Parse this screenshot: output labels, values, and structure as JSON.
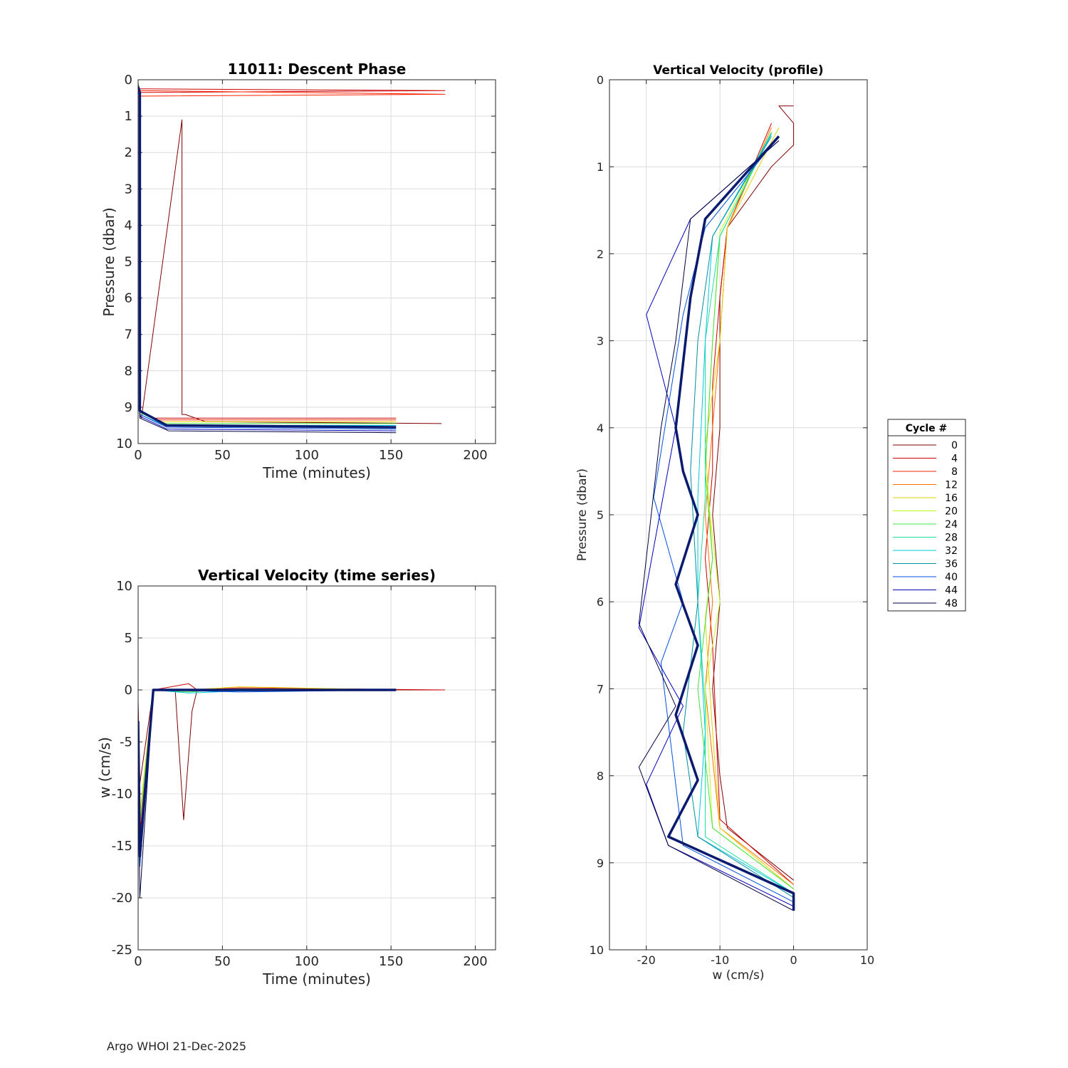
{
  "footer": "Argo WHOI 21-Dec-2025",
  "colors": {
    "cycle_ramp": [
      "#800000",
      "#cc0000",
      "#ff2000",
      "#ff7000",
      "#e6d000",
      "#c0ff20",
      "#40e040",
      "#20e0a0",
      "#00c8e0",
      "#0090a0",
      "#0050e0",
      "#0000c0",
      "#000040"
    ],
    "mean_line": "#0a1a6e"
  },
  "chart_data": [
    {
      "type": "line",
      "title": "11011: Descent Phase",
      "xlabel": "Time (minutes)",
      "ylabel": "Pressure (dbar)",
      "xlim": [
        0,
        212
      ],
      "ylim": [
        10,
        0
      ],
      "y_reversed": true,
      "xticks": [
        "0",
        "50",
        "100",
        "150",
        "200"
      ],
      "yticks": [
        "0",
        "1",
        "2",
        "3",
        "4",
        "5",
        "6",
        "7",
        "8",
        "9",
        "10"
      ],
      "grid": true,
      "series": [
        {
          "cycle": 0,
          "x": [
            0,
            1,
            1,
            2,
            26,
            26,
            26,
            28,
            40,
            180
          ],
          "y": [
            0.1,
            0.3,
            9.2,
            9.3,
            1.1,
            6.0,
            9.2,
            9.2,
            9.4,
            9.45
          ]
        },
        {
          "cycle": 4,
          "x": [
            0,
            182,
            0,
            1,
            1,
            10,
            153
          ],
          "y": [
            0.25,
            0.3,
            0.35,
            0.4,
            9.1,
            9.3,
            9.3
          ]
        },
        {
          "cycle": 8,
          "x": [
            0,
            182,
            0,
            1,
            1,
            12,
            153
          ],
          "y": [
            0.3,
            0.4,
            0.45,
            0.45,
            9.1,
            9.35,
            9.35
          ]
        },
        {
          "cycle": 16,
          "x": [
            0,
            1,
            1,
            14,
            153
          ],
          "y": [
            0.1,
            0.3,
            9.1,
            9.4,
            9.4
          ]
        },
        {
          "cycle": 24,
          "x": [
            0,
            1,
            1,
            15,
            153
          ],
          "y": [
            0.1,
            0.3,
            9.15,
            9.45,
            9.45
          ]
        },
        {
          "cycle": 32,
          "x": [
            0,
            1,
            1,
            16,
            153
          ],
          "y": [
            0.15,
            0.3,
            9.2,
            9.5,
            9.5
          ]
        },
        {
          "cycle": 40,
          "x": [
            0,
            1,
            1,
            17,
            153
          ],
          "y": [
            0.15,
            0.3,
            9.2,
            9.55,
            9.6
          ]
        },
        {
          "cycle": 44,
          "x": [
            0,
            1,
            1,
            17,
            153
          ],
          "y": [
            0.15,
            0.3,
            9.25,
            9.6,
            9.65
          ]
        },
        {
          "cycle": 48,
          "x": [
            0,
            1,
            1,
            18,
            153
          ],
          "y": [
            0.2,
            0.3,
            9.3,
            9.65,
            9.7
          ]
        },
        {
          "name": "mean",
          "x": [
            0,
            1,
            1,
            17,
            153
          ],
          "y": [
            0.2,
            0.35,
            9.1,
            9.5,
            9.55
          ]
        }
      ]
    },
    {
      "type": "line",
      "title": "Vertical Velocity (time series)",
      "xlabel": "Time (minutes)",
      "ylabel": "w (cm/s)",
      "xlim": [
        0,
        212
      ],
      "ylim": [
        -25,
        10
      ],
      "xticks": [
        "0",
        "50",
        "100",
        "150",
        "200"
      ],
      "yticks": [
        "10",
        "5",
        "0",
        "-5",
        "-10",
        "-15",
        "-20",
        "-25"
      ],
      "grid": true,
      "series": [
        {
          "cycle": 0,
          "x": [
            0,
            1,
            9,
            22,
            27,
            32,
            35,
            60,
            180
          ],
          "y": [
            -1,
            -9,
            0,
            0,
            -12.5,
            -2,
            0,
            0,
            0
          ]
        },
        {
          "cycle": 4,
          "x": [
            0,
            1,
            9,
            30,
            35,
            60,
            182
          ],
          "y": [
            -2,
            -14,
            0,
            0.6,
            0,
            0.2,
            0
          ]
        },
        {
          "cycle": 16,
          "x": [
            0,
            1,
            9,
            30,
            60,
            153
          ],
          "y": [
            -3,
            -12,
            0,
            0,
            0.3,
            0
          ]
        },
        {
          "cycle": 24,
          "x": [
            0,
            1,
            9,
            30,
            60,
            153
          ],
          "y": [
            -4,
            -13,
            0,
            -0.2,
            0.1,
            0
          ]
        },
        {
          "cycle": 32,
          "x": [
            0,
            1,
            9,
            30,
            60,
            153
          ],
          "y": [
            -5,
            -15,
            0,
            -0.3,
            -0.1,
            0
          ]
        },
        {
          "cycle": 40,
          "x": [
            0,
            1,
            9,
            60,
            153
          ],
          "y": [
            -6,
            -17,
            0,
            -0.2,
            0
          ]
        },
        {
          "cycle": 48,
          "x": [
            0,
            1,
            9,
            153
          ],
          "y": [
            -8,
            -20,
            0,
            0
          ]
        },
        {
          "name": "mean",
          "x": [
            0,
            1,
            9,
            153
          ],
          "y": [
            -3,
            -16,
            0,
            0
          ]
        }
      ]
    },
    {
      "type": "line",
      "title": "Vertical Velocity (profile)",
      "xlabel": "w (cm/s)",
      "ylabel": "Pressure (dbar)",
      "xlim": [
        -25,
        10
      ],
      "ylim": [
        10,
        0
      ],
      "y_reversed": true,
      "xticks": [
        "-20",
        "-10",
        "0",
        "10"
      ],
      "yticks": [
        "0",
        "1",
        "2",
        "3",
        "4",
        "5",
        "6",
        "7",
        "8",
        "9",
        "10"
      ],
      "grid": true,
      "series": [
        {
          "cycle": 0,
          "x": [
            0,
            -2,
            0,
            0,
            -3,
            -9,
            -10,
            -10,
            -11,
            -10,
            -11,
            -10,
            -9,
            0
          ],
          "y": [
            0.3,
            0.3,
            0.5,
            0.75,
            1.0,
            1.7,
            2.5,
            4.0,
            5.0,
            6.0,
            7.0,
            8.0,
            8.6,
            9.2
          ]
        },
        {
          "cycle": 4,
          "x": [
            -3,
            -9,
            -10,
            -11,
            -11,
            -12,
            -11,
            -10,
            0
          ],
          "y": [
            0.5,
            1.7,
            2.5,
            3.5,
            4.5,
            5.5,
            6.5,
            8.5,
            9.25
          ]
        },
        {
          "cycle": 12,
          "x": [
            -3,
            -9,
            -10,
            -11,
            -12,
            -11,
            -12,
            -10,
            0
          ],
          "y": [
            0.55,
            1.7,
            3.0,
            4.0,
            5.0,
            6.0,
            7.0,
            8.6,
            9.25
          ]
        },
        {
          "cycle": 16,
          "x": [
            -2,
            -9,
            -10,
            -12,
            -11,
            -12,
            -11,
            -10,
            0
          ],
          "y": [
            0.55,
            1.7,
            3.0,
            4.2,
            5.5,
            6.2,
            7.5,
            8.6,
            9.3
          ]
        },
        {
          "cycle": 20,
          "x": [
            -3,
            -10,
            -11,
            -12,
            -10,
            -12,
            -11,
            0
          ],
          "y": [
            0.6,
            1.75,
            3.0,
            4.5,
            6.0,
            7.0,
            8.6,
            9.3
          ]
        },
        {
          "cycle": 24,
          "x": [
            -3,
            -10,
            -11,
            -12,
            -11,
            -13,
            -11,
            0
          ],
          "y": [
            0.6,
            1.8,
            3.0,
            4.5,
            5.5,
            7.0,
            8.6,
            9.3
          ]
        },
        {
          "cycle": 28,
          "x": [
            -3,
            -10,
            -12,
            -12,
            -13,
            -12,
            -12,
            0
          ],
          "y": [
            0.62,
            1.8,
            3.0,
            4.8,
            6.0,
            7.2,
            8.7,
            9.35
          ]
        },
        {
          "cycle": 32,
          "x": [
            -3,
            -11,
            -12,
            -13,
            -13,
            -12,
            -13,
            0
          ],
          "y": [
            0.62,
            1.8,
            3.0,
            4.8,
            6.0,
            7.5,
            8.7,
            9.35
          ]
        },
        {
          "cycle": 36,
          "x": [
            -3,
            -11,
            -13,
            -14,
            -13,
            -15,
            -13,
            0
          ],
          "y": [
            0.65,
            1.8,
            3.0,
            4.5,
            6.0,
            7.5,
            8.7,
            9.4
          ]
        },
        {
          "cycle": 40,
          "x": [
            -2,
            -12,
            -15,
            -19,
            -15,
            -18,
            -15,
            0
          ],
          "y": [
            0.65,
            1.7,
            2.7,
            4.8,
            6.0,
            6.7,
            8.8,
            9.45
          ]
        },
        {
          "cycle": 44,
          "x": [
            -2,
            -14,
            -20,
            -16,
            -21,
            -15,
            -20,
            -17,
            0
          ],
          "y": [
            0.7,
            1.6,
            2.7,
            4.0,
            6.3,
            7.2,
            8.1,
            8.8,
            9.5
          ]
        },
        {
          "cycle": 48,
          "x": [
            -2,
            -14,
            -16,
            -18,
            -21,
            -16,
            -21,
            -17,
            0
          ],
          "y": [
            0.7,
            1.6,
            3.0,
            4.0,
            6.25,
            7.2,
            7.9,
            8.8,
            9.55
          ]
        },
        {
          "name": "mean",
          "x": [
            -2,
            -12,
            -14,
            -16,
            -15,
            -13,
            -16,
            -13,
            -16,
            -13,
            -17,
            0,
            0
          ],
          "y": [
            0.65,
            1.6,
            2.5,
            4.0,
            4.5,
            5.0,
            5.8,
            6.5,
            7.3,
            8.05,
            8.7,
            9.35,
            9.55
          ]
        }
      ],
      "legend": {
        "title": "Cycle #",
        "position": "right",
        "entries": [
          "0",
          "4",
          "8",
          "12",
          "16",
          "20",
          "24",
          "28",
          "32",
          "36",
          "40",
          "44",
          "48"
        ]
      }
    }
  ]
}
